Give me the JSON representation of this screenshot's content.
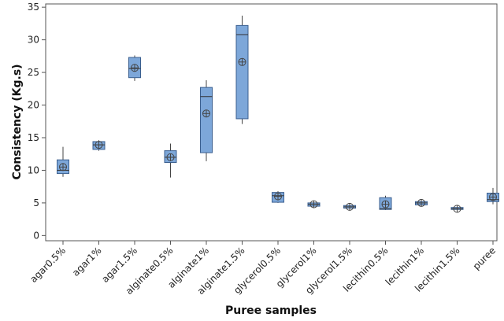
{
  "chart_data": {
    "type": "box",
    "xlabel": "Puree samples",
    "ylabel": "Consistency (Kg.s)",
    "ylim": [
      -0.8,
      35.5
    ],
    "yticks": [
      0,
      5,
      10,
      15,
      20,
      25,
      30,
      35
    ],
    "grid": false,
    "colors": {
      "box_fill": "#7da7d9",
      "box_stroke": "#3b5f8f",
      "whisker": "#444444"
    },
    "categories": [
      "agar0.5%",
      "agar1%",
      "agar1.5%",
      "alginate0.5%",
      "alginate1%",
      "alginate1.5%",
      "glycerol0.5%",
      "glycerol1%",
      "glycerol1.5%",
      "lecithin0.5%",
      "lecithin1%",
      "lecithin1.5%",
      "puree"
    ],
    "boxes": [
      {
        "min": 9.0,
        "q1": 9.5,
        "median": 10.0,
        "q3": 11.6,
        "max": 13.6,
        "mean": 10.5
      },
      {
        "min": 13.0,
        "q1": 13.2,
        "median": 13.9,
        "q3": 14.4,
        "max": 14.6,
        "mean": 13.9
      },
      {
        "min": 23.7,
        "q1": 24.2,
        "median": 25.6,
        "q3": 27.3,
        "max": 27.6,
        "mean": 25.7
      },
      {
        "min": 8.9,
        "q1": 11.2,
        "median": 12.0,
        "q3": 13.0,
        "max": 14.1,
        "mean": 12.0
      },
      {
        "min": 11.4,
        "q1": 12.7,
        "median": 21.3,
        "q3": 22.7,
        "max": 23.8,
        "mean": 18.7
      },
      {
        "min": 17.1,
        "q1": 17.9,
        "median": 30.8,
        "q3": 32.2,
        "max": 33.7,
        "mean": 26.6
      },
      {
        "min": 5.0,
        "q1": 5.1,
        "median": 6.1,
        "q3": 6.6,
        "max": 6.8,
        "mean": 6.0
      },
      {
        "min": 4.3,
        "q1": 4.5,
        "median": 4.8,
        "q3": 5.0,
        "max": 5.3,
        "mean": 4.8
      },
      {
        "min": 4.1,
        "q1": 4.2,
        "median": 4.4,
        "q3": 4.6,
        "max": 4.8,
        "mean": 4.4
      },
      {
        "min": 3.9,
        "q1": 4.0,
        "median": 4.1,
        "q3": 5.8,
        "max": 6.1,
        "mean": 4.8
      },
      {
        "min": 4.6,
        "q1": 4.7,
        "median": 5.0,
        "q3": 5.2,
        "max": 5.4,
        "mean": 5.0
      },
      {
        "min": 3.9,
        "q1": 4.0,
        "median": 4.1,
        "q3": 4.3,
        "max": 4.4,
        "mean": 4.1
      },
      {
        "min": 4.8,
        "q1": 5.2,
        "median": 5.5,
        "q3": 6.5,
        "max": 7.3,
        "mean": 5.9
      }
    ]
  }
}
